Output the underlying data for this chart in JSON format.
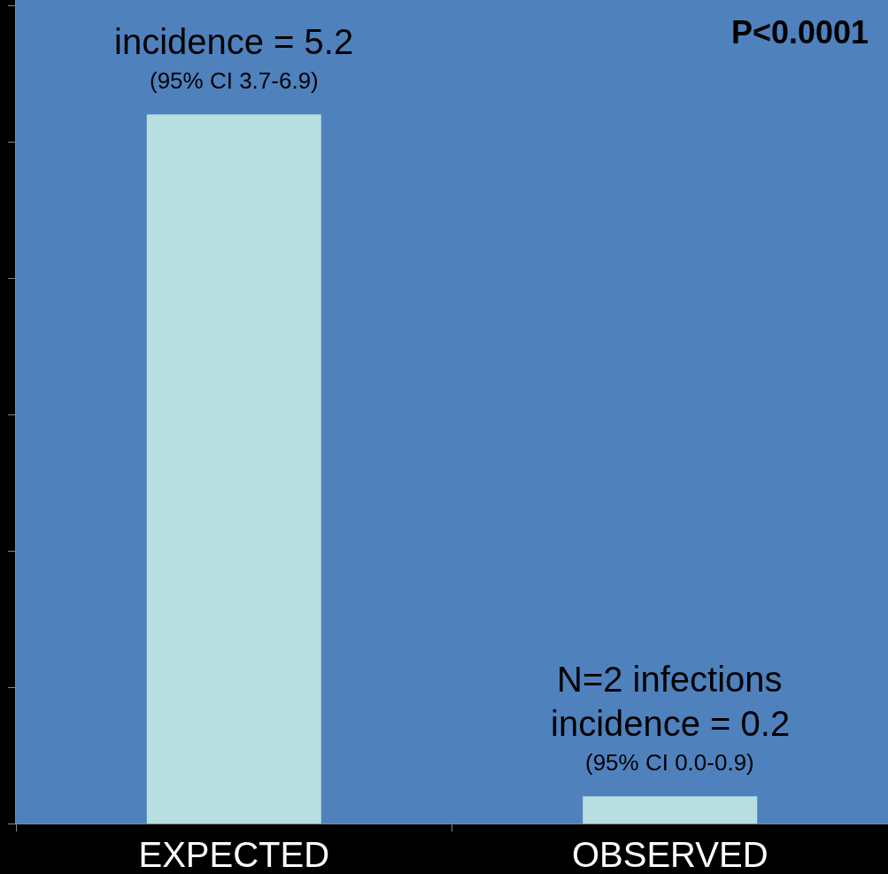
{
  "chart_data": {
    "type": "bar",
    "categories": [
      "EXPECTED",
      "OBSERVED"
    ],
    "values": [
      5.2,
      0.2
    ],
    "color": "#b7dfe0",
    "value_labels": [
      "incidence = 5.2",
      "incidence = 0.2"
    ],
    "ylim": [
      0,
      6.04
    ],
    "tick_labels": "x",
    "grid": false,
    "annotations": [
      {
        "text": "(95% CI 3.7-6.9)",
        "x": "EXPECTED",
        "y": 5.2
      },
      {
        "text": "N=2 infections",
        "x": "OBSERVED",
        "y": 0.2
      },
      {
        "text": "(95% CI 0.0-0.9)",
        "x": "OBSERVED",
        "y": 0.2
      },
      "P<0.0001"
    ]
  }
}
